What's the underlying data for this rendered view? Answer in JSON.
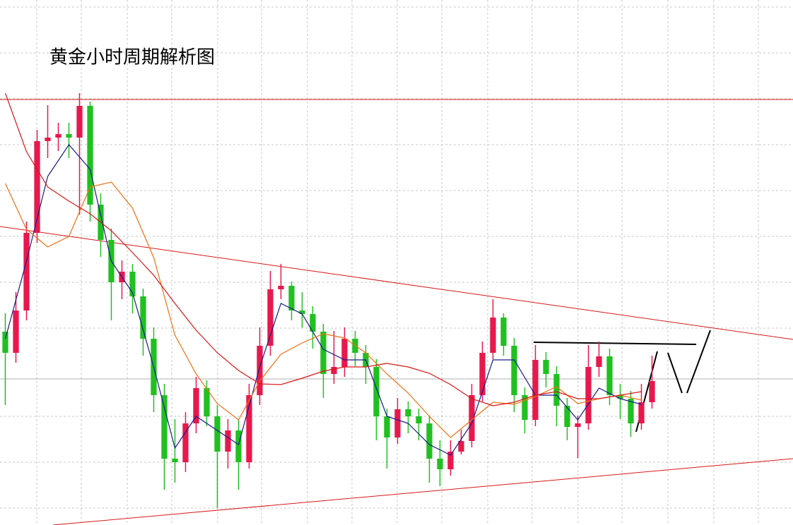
{
  "chart_data": {
    "type": "candlestick",
    "title": "黄金小时周期解析图",
    "xlim": [
      -0.5,
      74.3
    ],
    "ylim": [
      0,
      744
    ],
    "grid": true,
    "ygrid": [
      734,
      669,
      604,
      539,
      474,
      409,
      344,
      279,
      154,
      89,
      24
    ],
    "xgrid": [
      2.97,
      7.17,
      11.5,
      15.7,
      20.03,
      24.17,
      28.5,
      32.7,
      36.97,
      41.17,
      45.5,
      49.7,
      54.03,
      58.17,
      62.5,
      66.83,
      71.03
    ],
    "up_color": "#e8184c",
    "down_color": "#20c020",
    "open": [
      274,
      244,
      304,
      414,
      544,
      549,
      554,
      549,
      594,
      454,
      404,
      344,
      359,
      324,
      264,
      184,
      94,
      89,
      144,
      194,
      154,
      104,
      134,
      89,
      184,
      254,
      334,
      339,
      304,
      299,
      274,
      214,
      224,
      264,
      244,
      224,
      154,
      124,
      164,
      154,
      144,
      94,
      79,
      104,
      119,
      184,
      244,
      294,
      254,
      184,
      149,
      234,
      214,
      169,
      139,
      144,
      224,
      239,
      184,
      179,
      144,
      174
    ],
    "high": [
      300,
      330,
      430,
      560,
      595,
      570,
      570,
      612,
      600,
      470,
      420,
      375,
      370,
      335,
      280,
      200,
      150,
      160,
      210,
      205,
      170,
      150,
      150,
      200,
      280,
      360,
      370,
      345,
      330,
      310,
      285,
      275,
      280,
      275,
      255,
      235,
      165,
      180,
      175,
      165,
      155,
      120,
      120,
      135,
      200,
      260,
      320,
      300,
      265,
      195,
      255,
      245,
      225,
      180,
      155,
      255,
      260,
      250,
      200,
      190,
      200,
      240
    ],
    "low": [
      170,
      230,
      290,
      400,
      520,
      530,
      520,
      440,
      430,
      380,
      290,
      320,
      300,
      240,
      160,
      50,
      60,
      75,
      130,
      140,
      24,
      80,
      50,
      80,
      170,
      240,
      320,
      290,
      280,
      250,
      180,
      200,
      210,
      225,
      200,
      120,
      80,
      115,
      130,
      120,
      60,
      55,
      70,
      100,
      110,
      175,
      235,
      240,
      160,
      130,
      140,
      195,
      140,
      120,
      95,
      135,
      210,
      170,
      150,
      125,
      135,
      165
    ],
    "close": [
      244,
      304,
      414,
      544,
      549,
      554,
      549,
      594,
      454,
      404,
      344,
      359,
      324,
      264,
      184,
      94,
      89,
      144,
      194,
      154,
      104,
      134,
      89,
      184,
      254,
      334,
      339,
      304,
      299,
      274,
      214,
      224,
      264,
      244,
      224,
      154,
      124,
      164,
      154,
      144,
      94,
      79,
      104,
      119,
      184,
      244,
      294,
      254,
      184,
      149,
      234,
      214,
      169,
      139,
      144,
      224,
      239,
      184,
      179,
      144,
      174,
      204
    ],
    "ma_x": [
      0,
      2,
      4,
      6,
      8,
      10,
      12,
      14,
      16,
      18,
      20,
      22,
      24,
      26,
      28,
      30,
      32,
      34,
      36,
      38,
      40,
      42,
      44,
      46,
      48,
      50,
      52,
      54,
      56,
      58,
      60
    ],
    "moving_averages": [
      {
        "color": "#1a1a8c",
        "values": [
          264,
          374,
          494,
          539,
          504,
          374,
          329,
          224,
          109,
          154,
          134,
          114,
          224,
          314,
          299,
          249,
          234,
          234,
          154,
          144,
          114,
          99,
          144,
          234,
          234,
          184,
          184,
          149,
          194,
          179,
          171
        ]
      },
      {
        "color": "#f07010",
        "values": [
          484,
          419,
          394,
          409,
          479,
          486,
          449,
          379,
          269,
          214,
          172,
          149,
          204,
          242,
          258,
          271,
          265,
          244,
          214,
          187,
          154,
          124,
          149,
          174,
          171,
          182,
          196,
          172,
          179,
          184,
          177
        ]
      },
      {
        "color": "#d81818",
        "values": [
          612,
          529,
          479,
          459,
          441,
          417,
          386,
          354,
          314,
          276,
          244,
          219,
          200,
          199,
          208,
          218,
          224,
          224,
          229,
          224,
          215,
          199,
          179,
          169,
          174,
          184,
          189,
          179,
          179,
          184,
          189
        ]
      }
    ],
    "lines": [
      {
        "color": "#d81818",
        "x": [
          -0.5,
          74.3
        ],
        "values": [
          423,
          263
        ]
      },
      {
        "color": "#d81818",
        "x": [
          4.5,
          74.3
        ],
        "values": [
          0,
          94
        ]
      },
      {
        "color": "#d81818",
        "x": [
          -0.5,
          74.3
        ],
        "values": [
          603,
          603
        ]
      },
      {
        "color": "#b0b0b0",
        "x": [
          -0.5,
          74.3
        ],
        "values": [
          207,
          207
        ]
      },
      {
        "color": "#000000",
        "x": [
          49.83,
          65.17
        ],
        "values": [
          259,
          256
        ]
      },
      {
        "color": "#000000",
        "x": [
          59.5,
          61.5
        ],
        "values": [
          132,
          246
        ]
      },
      {
        "color": "#000000",
        "x": [
          62.5,
          63.83
        ],
        "values": [
          244,
          187
        ]
      },
      {
        "color": "#000000",
        "x": [
          64.3,
          66.5
        ],
        "values": [
          187,
          276
        ]
      }
    ]
  }
}
